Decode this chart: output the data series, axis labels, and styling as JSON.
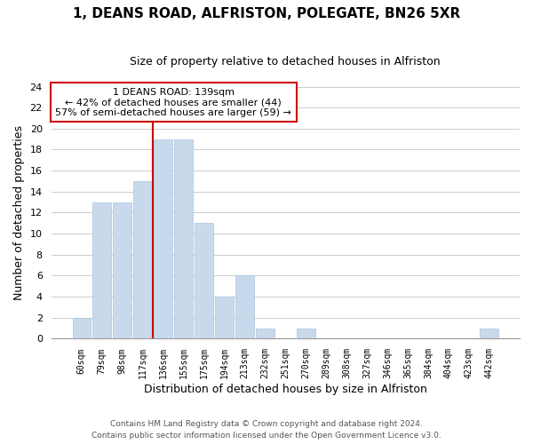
{
  "title": "1, DEANS ROAD, ALFRISTON, POLEGATE, BN26 5XR",
  "subtitle": "Size of property relative to detached houses in Alfriston",
  "xlabel": "Distribution of detached houses by size in Alfriston",
  "ylabel": "Number of detached properties",
  "bar_labels": [
    "60sqm",
    "79sqm",
    "98sqm",
    "117sqm",
    "136sqm",
    "155sqm",
    "175sqm",
    "194sqm",
    "213sqm",
    "232sqm",
    "251sqm",
    "270sqm",
    "289sqm",
    "308sqm",
    "327sqm",
    "346sqm",
    "365sqm",
    "384sqm",
    "404sqm",
    "423sqm",
    "442sqm"
  ],
  "bar_values": [
    2,
    13,
    13,
    15,
    19,
    19,
    11,
    4,
    6,
    1,
    0,
    1,
    0,
    0,
    0,
    0,
    0,
    0,
    0,
    0,
    1
  ],
  "bar_color": "#c9d9ec",
  "bar_edge_color": "#a8c4e0",
  "highlight_bar_index": 4,
  "highlight_line_color": "#cc0000",
  "vline_x": 4,
  "annotation_text": "1 DEANS ROAD: 139sqm\n← 42% of detached houses are smaller (44)\n57% of semi-detached houses are larger (59) →",
  "annotation_box_color": "#ffffff",
  "annotation_box_edge_color": "#cc0000",
  "ylim": [
    0,
    24
  ],
  "yticks": [
    0,
    2,
    4,
    6,
    8,
    10,
    12,
    14,
    16,
    18,
    20,
    22,
    24
  ],
  "footer_line1": "Contains HM Land Registry data © Crown copyright and database right 2024.",
  "footer_line2": "Contains public sector information licensed under the Open Government Licence v3.0.",
  "background_color": "#ffffff",
  "grid_color": "#cccccc"
}
